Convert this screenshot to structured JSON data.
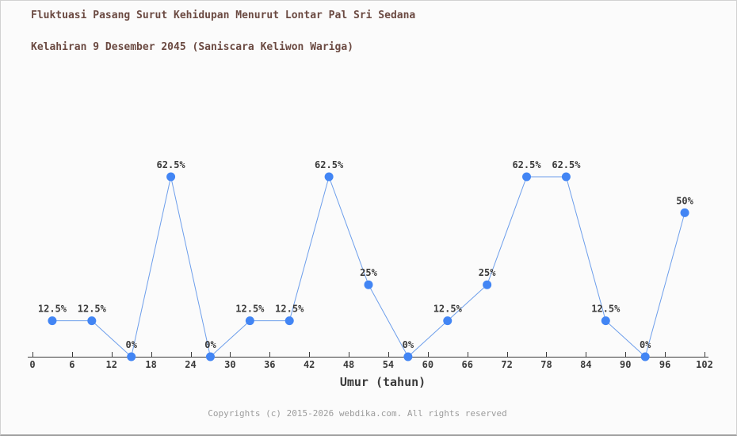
{
  "page": {
    "background": "#fbfbfb",
    "border_color": "#d2d2d2"
  },
  "title": {
    "line1": "Fluktuasi Pasang Surut Kehidupan Menurut Lontar Pal Sri Sedana",
    "line2": "Kelahiran 9 Desember 2045 (Saniscara Keliwon Wariga)",
    "color": "#6b4a42"
  },
  "footer": {
    "text": "Copyrights (c) 2015-2026 webdika.com. All rights reserved",
    "color": "#9c9c9c"
  },
  "chart_data": {
    "type": "line",
    "title": "Fluktuasi Pasang Surut Kehidupan Menurut Lontar Pal Sri Sedana Kelahiran 9 Desember 2045 (Saniscara Keliwon Wariga)",
    "xlabel": "Umur (tahun)",
    "ylabel": "",
    "x": [
      3,
      9,
      15,
      21,
      27,
      33,
      39,
      45,
      51,
      57,
      63,
      69,
      75,
      81,
      87,
      93,
      99
    ],
    "values": [
      12.5,
      12.5,
      0,
      62.5,
      0,
      12.5,
      12.5,
      62.5,
      25,
      0,
      12.5,
      25,
      62.5,
      62.5,
      12.5,
      0,
      50
    ],
    "point_labels": [
      "12.5%",
      "12.5%",
      "0%",
      "62.5%",
      "0%",
      "12.5%",
      "12.5%",
      "62.5%",
      "25%",
      "0%",
      "12.5%",
      "25%",
      "62.5%",
      "62.5%",
      "12.5%",
      "0%",
      "50%"
    ],
    "x_ticks": [
      0,
      6,
      12,
      18,
      24,
      30,
      36,
      42,
      48,
      54,
      60,
      66,
      72,
      78,
      84,
      90,
      96,
      102
    ],
    "xlim": [
      0,
      102
    ],
    "ylim": [
      0,
      100
    ],
    "grid": false,
    "legend": "none",
    "y_axis_shown": false,
    "marker_color": "#4285f4",
    "line_color": "#6d9eeb",
    "axis_color": "#3a3a3a",
    "label_color": "#3a3a3a"
  }
}
